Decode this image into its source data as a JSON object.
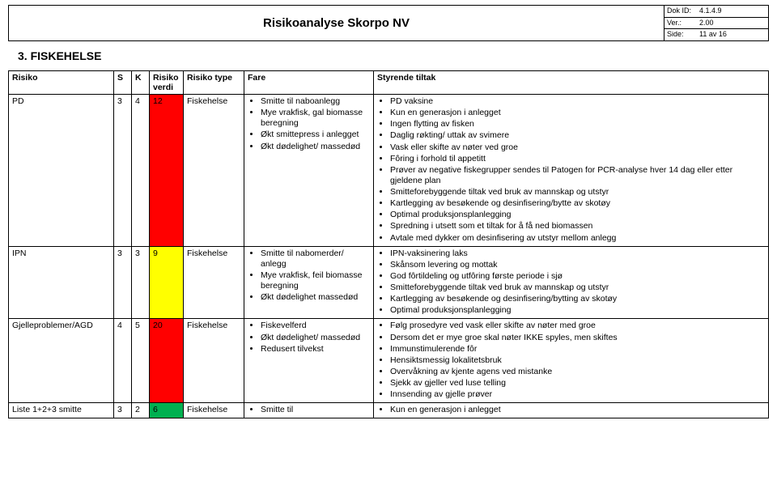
{
  "doc": {
    "title": "Risikoanalyse Skorpo NV",
    "meta": {
      "dok_id_label": "Dok ID:",
      "dok_id": "4.1.4.9",
      "ver_label": "Ver.:",
      "ver": "2.00",
      "side_label": "Side:",
      "side": "11 av 16"
    }
  },
  "section": {
    "number": "3.",
    "title": "FISKEHELSE"
  },
  "table": {
    "headers": {
      "risiko": "Risiko",
      "s": "S",
      "k": "K",
      "verdi": "Risiko verdi",
      "type": "Risiko type",
      "fare": "Fare",
      "tiltak": "Styrende tiltak"
    },
    "rows": [
      {
        "risiko": "PD",
        "s": "3",
        "k": "4",
        "verdi": "12",
        "verdi_color": "rv-red",
        "verdi_hex": "#ff0000",
        "type": "Fiskehelse",
        "fare": [
          "Smitte til naboanlegg",
          "Mye vrakfisk, gal biomasse beregning",
          "Økt smittepress i anlegget",
          "Økt dødelighet/ massedød"
        ],
        "tiltak": [
          "PD vaksine",
          "Kun en generasjon i anlegget",
          "Ingen flytting av fisken",
          "Daglig røkting/ uttak av svimere",
          "Vask eller skifte av nøter ved groe",
          "Fôring i forhold til appetitt",
          "Prøver av negative fiskegrupper sendes til Patogen for PCR-analyse hver 14 dag eller etter gjeldene plan",
          "Smitteforebyggende tiltak ved bruk av mannskap og utstyr",
          "Kartlegging av besøkende og desinfisering/bytte av skotøy",
          "Optimal produksjonsplanlegging",
          "Spredning i utsett som et tiltak for å få ned biomassen",
          "Avtale med dykker om desinfisering av utstyr mellom anlegg"
        ]
      },
      {
        "risiko": "IPN",
        "s": "3",
        "k": "3",
        "verdi": "9",
        "verdi_color": "rv-yellow",
        "verdi_hex": "#ffff00",
        "type": "Fiskehelse",
        "fare": [
          "Smitte til nabomerder/ anlegg",
          "Mye vrakfisk, feil biomasse beregning",
          "Økt dødelighet massedød"
        ],
        "tiltak": [
          "IPN-vaksinering laks",
          "Skånsom levering og mottak",
          "God fôrtildeling og utfôring første periode i sjø",
          "Smitteforebyggende tiltak ved bruk av mannskap og utstyr",
          "Kartlegging av besøkende og desinfisering/bytting av skotøy",
          "Optimal produksjonsplanlegging"
        ]
      },
      {
        "risiko": "Gjelleproblemer/AGD",
        "s": "4",
        "k": "5",
        "verdi": "20",
        "verdi_color": "rv-red",
        "verdi_hex": "#ff0000",
        "type": "Fiskehelse",
        "fare": [
          "Fiskevelferd",
          "Økt dødelighet/ massedød",
          "Redusert tilvekst"
        ],
        "tiltak": [
          "Følg prosedyre ved vask eller skifte av nøter med groe",
          "Dersom det er mye groe skal nøter IKKE spyles, men skiftes",
          "Immunstimulerende fôr",
          "Hensiktsmessig lokalitetsbruk",
          "Overvåkning av kjente agens ved mistanke",
          "Sjekk av gjeller ved luse telling",
          "Innsending av gjelle prøver"
        ]
      },
      {
        "risiko": "Liste 1+2+3 smitte",
        "s": "3",
        "k": "2",
        "verdi": "6",
        "verdi_color": "rv-green",
        "verdi_hex": "#00b050",
        "type": "Fiskehelse",
        "fare": [
          "Smitte til"
        ],
        "tiltak": [
          "Kun en generasjon i anlegget"
        ]
      }
    ]
  }
}
